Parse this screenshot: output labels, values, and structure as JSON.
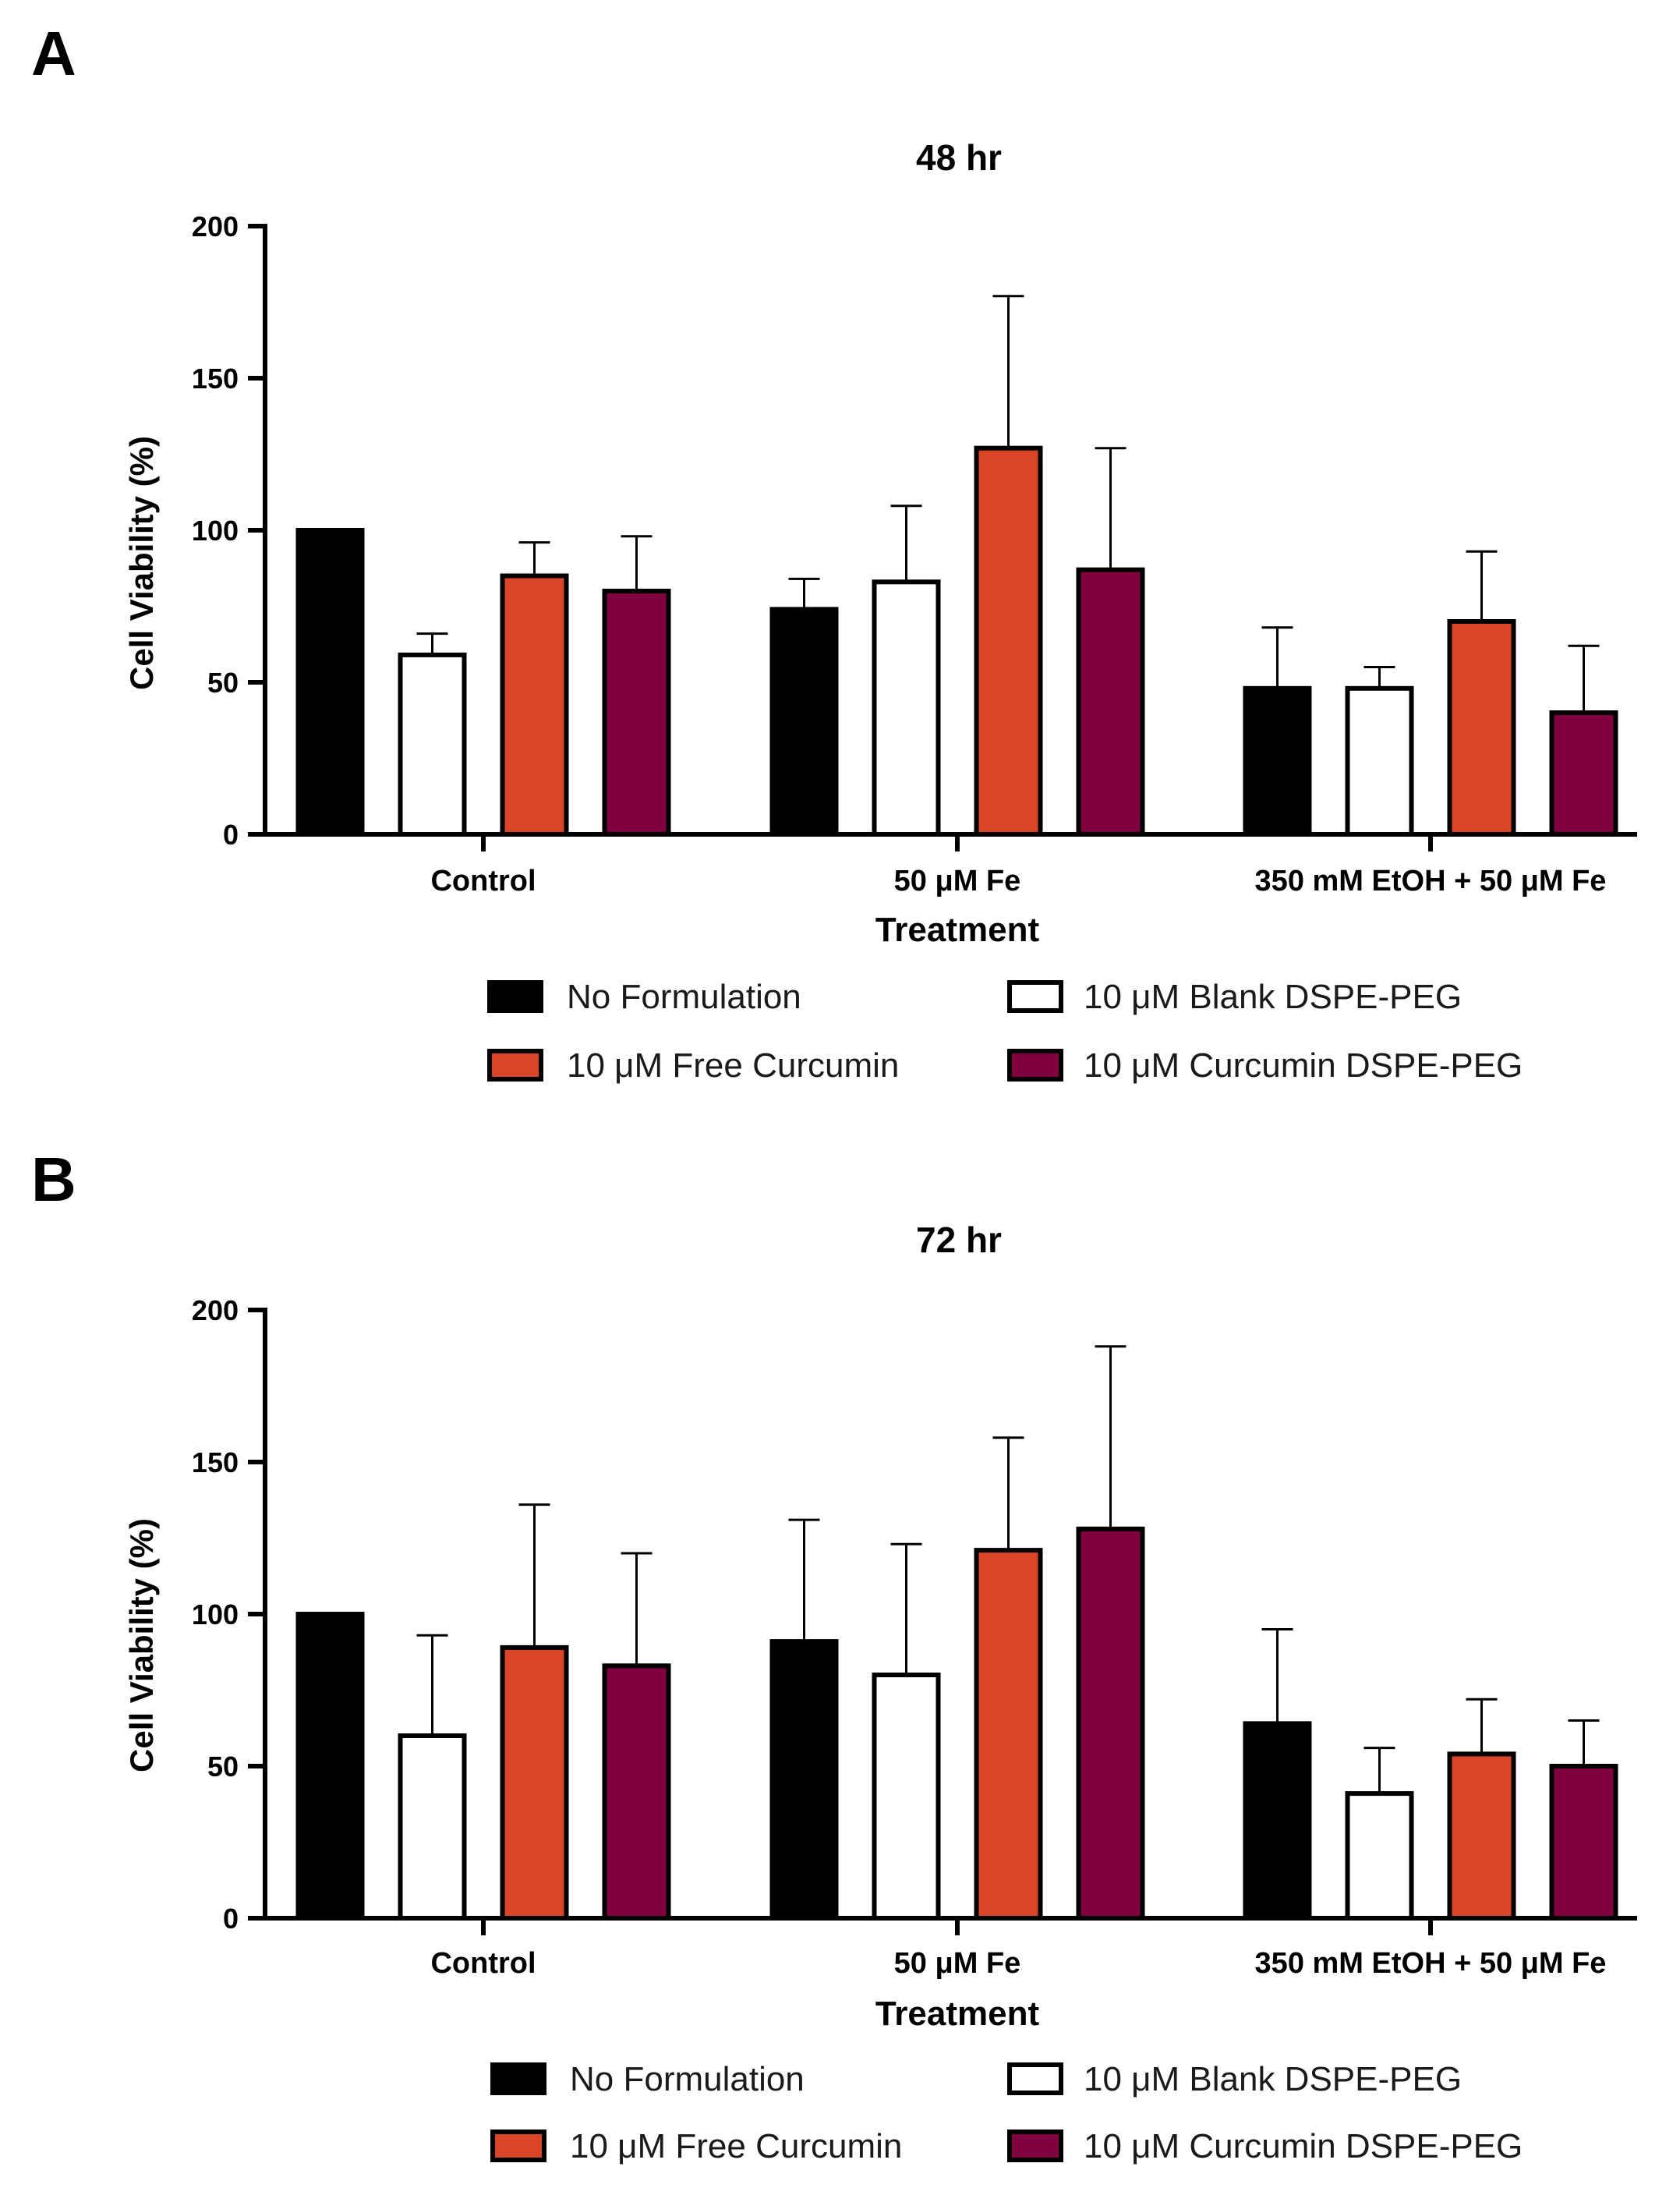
{
  "chart_data": [
    {
      "panel_label": "A",
      "type": "bar",
      "title": "48 hr",
      "xlabel": "Treatment",
      "ylabel": "Cell Viability (%)",
      "ylim": [
        0,
        200
      ],
      "yticks": [
        0,
        50,
        100,
        150,
        200
      ],
      "categories": [
        "Control",
        "50 μM Fe",
        "350 mM EtOH + 50 μM Fe"
      ],
      "series": [
        {
          "name": "No Formulation",
          "color": "#000000",
          "values": [
            100,
            74,
            48
          ],
          "errors": [
            0,
            10,
            20
          ]
        },
        {
          "name": "10 μM Blank DSPE-PEG",
          "color": "#ffffff",
          "values": [
            59,
            83,
            48
          ],
          "errors": [
            7,
            25,
            7
          ]
        },
        {
          "name": "10 μM Free Curcumin",
          "color": "#d84527",
          "values": [
            85,
            127,
            70
          ],
          "errors": [
            11,
            50,
            23
          ]
        },
        {
          "name": "10 μM Curcumin DSPE-PEG",
          "color": "#80003f",
          "values": [
            80,
            87,
            40
          ],
          "errors": [
            18,
            40,
            22
          ]
        }
      ]
    },
    {
      "panel_label": "B",
      "type": "bar",
      "title": "72 hr",
      "xlabel": "Treatment",
      "ylabel": "Cell Viability (%)",
      "ylim": [
        0,
        200
      ],
      "yticks": [
        0,
        50,
        100,
        150,
        200
      ],
      "categories": [
        "Control",
        "50 μM Fe",
        "350 mM EtOH + 50 μM Fe"
      ],
      "series": [
        {
          "name": "No Formulation",
          "color": "#000000",
          "values": [
            100,
            91,
            64
          ],
          "errors": [
            0,
            40,
            31
          ]
        },
        {
          "name": "10 μM Blank DSPE-PEG",
          "color": "#ffffff",
          "values": [
            60,
            80,
            41
          ],
          "errors": [
            33,
            43,
            15
          ]
        },
        {
          "name": "10 μM Free Curcumin",
          "color": "#d84527",
          "values": [
            89,
            121,
            54
          ],
          "errors": [
            47,
            37,
            18
          ]
        },
        {
          "name": "10 μM Curcumin DSPE-PEG",
          "color": "#80003f",
          "values": [
            83,
            128,
            50
          ],
          "errors": [
            37,
            60,
            15
          ]
        }
      ]
    }
  ]
}
